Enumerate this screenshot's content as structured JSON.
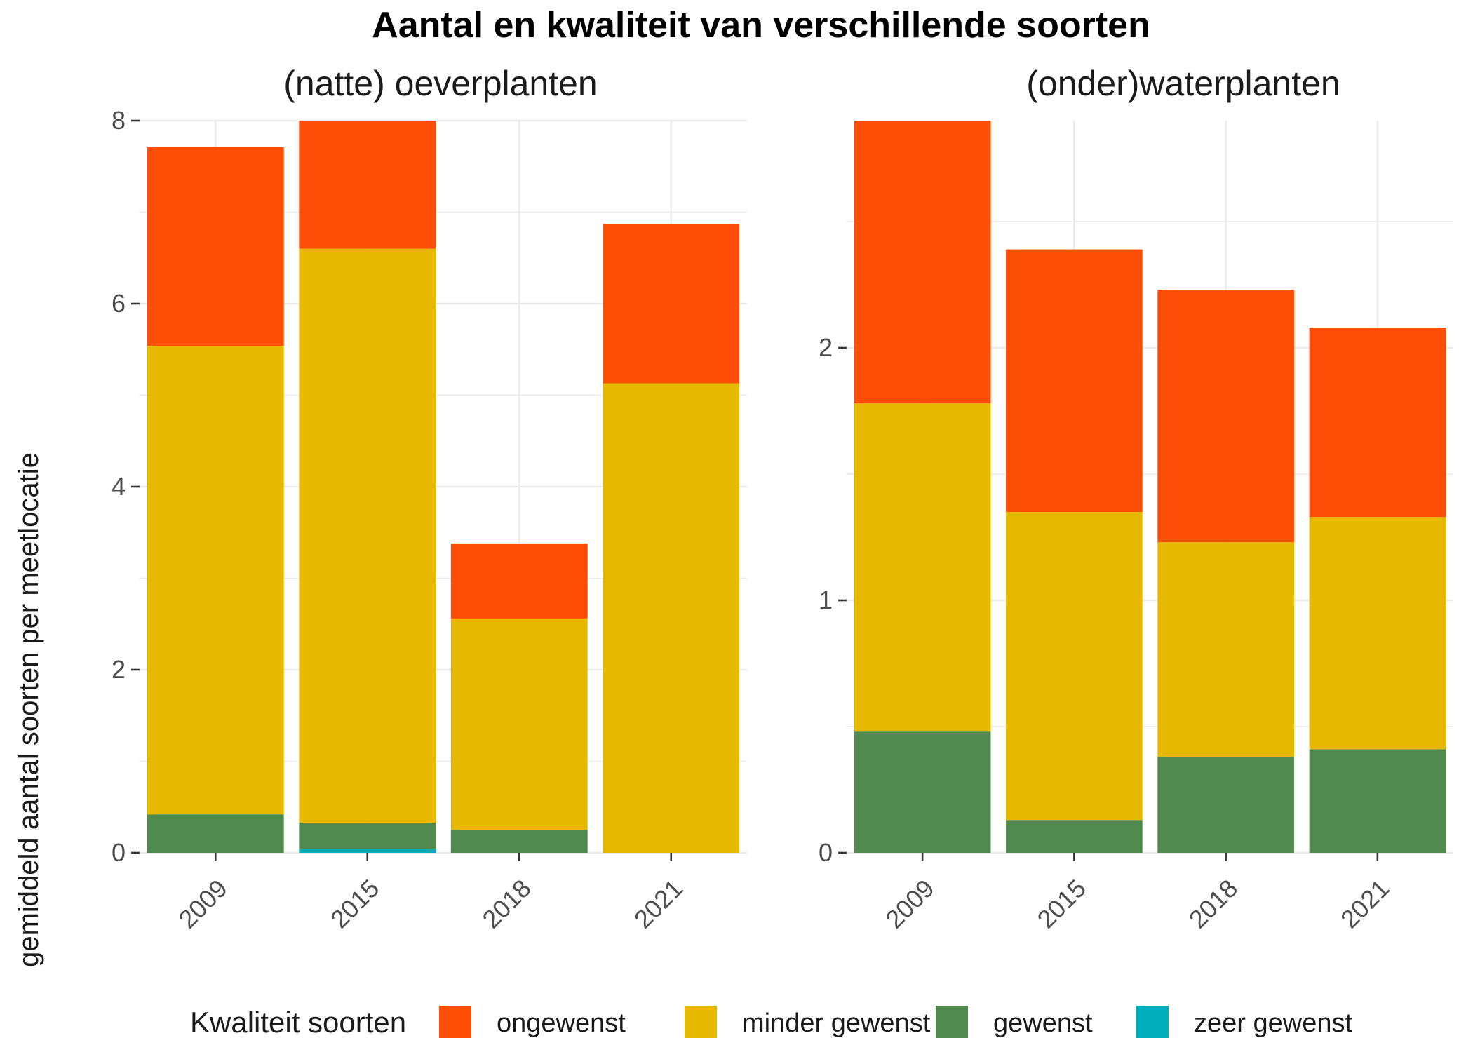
{
  "chart_data": {
    "type": "bar",
    "stacked": true,
    "title": "Aantal en kwaliteit van verschillende soorten",
    "ylabel": "gemiddeld aantal soorten per meetlocatie",
    "xlabel": "",
    "grid": true,
    "legend_position": "bottom",
    "legend_title": "Kwaliteit soorten",
    "legend": [
      {
        "name": "ongewenst",
        "color": "#fc4e07"
      },
      {
        "name": "minder gewenst",
        "color": "#e6b900"
      },
      {
        "name": "gewenst",
        "color": "#52894f"
      },
      {
        "name": "zeer gewenst",
        "color": "#00afbb"
      }
    ],
    "panels": [
      {
        "title": "(natte) oeverplanten",
        "categories": [
          "2009",
          "2015",
          "2018",
          "2021"
        ],
        "ylim": [
          0,
          8
        ],
        "yticks": [
          "0",
          "2",
          "4",
          "6",
          "8"
        ],
        "series": [
          {
            "name": "zeer gewenst",
            "values": [
              0,
              0.04,
              0,
              0
            ]
          },
          {
            "name": "gewenst",
            "values": [
              0.42,
              0.29,
              0.25,
              0
            ]
          },
          {
            "name": "minder gewenst",
            "values": [
              5.12,
              6.27,
              2.31,
              5.13
            ]
          },
          {
            "name": "ongewenst",
            "values": [
              2.17,
              1.4,
              0.82,
              1.74
            ]
          }
        ]
      },
      {
        "title": "(onder)waterplanten",
        "categories": [
          "2009",
          "2015",
          "2018",
          "2021"
        ],
        "ylim": [
          0,
          2.9
        ],
        "yticks": [
          "0",
          "1",
          "2"
        ],
        "series": [
          {
            "name": "zeer gewenst",
            "values": [
              0,
              0,
              0,
              0
            ]
          },
          {
            "name": "gewenst",
            "values": [
              0.48,
              0.13,
              0.38,
              0.41
            ]
          },
          {
            "name": "minder gewenst",
            "values": [
              1.3,
              1.22,
              0.85,
              0.92
            ]
          },
          {
            "name": "ongewenst",
            "values": [
              1.12,
              1.04,
              1.0,
              0.75
            ]
          }
        ]
      }
    ]
  }
}
